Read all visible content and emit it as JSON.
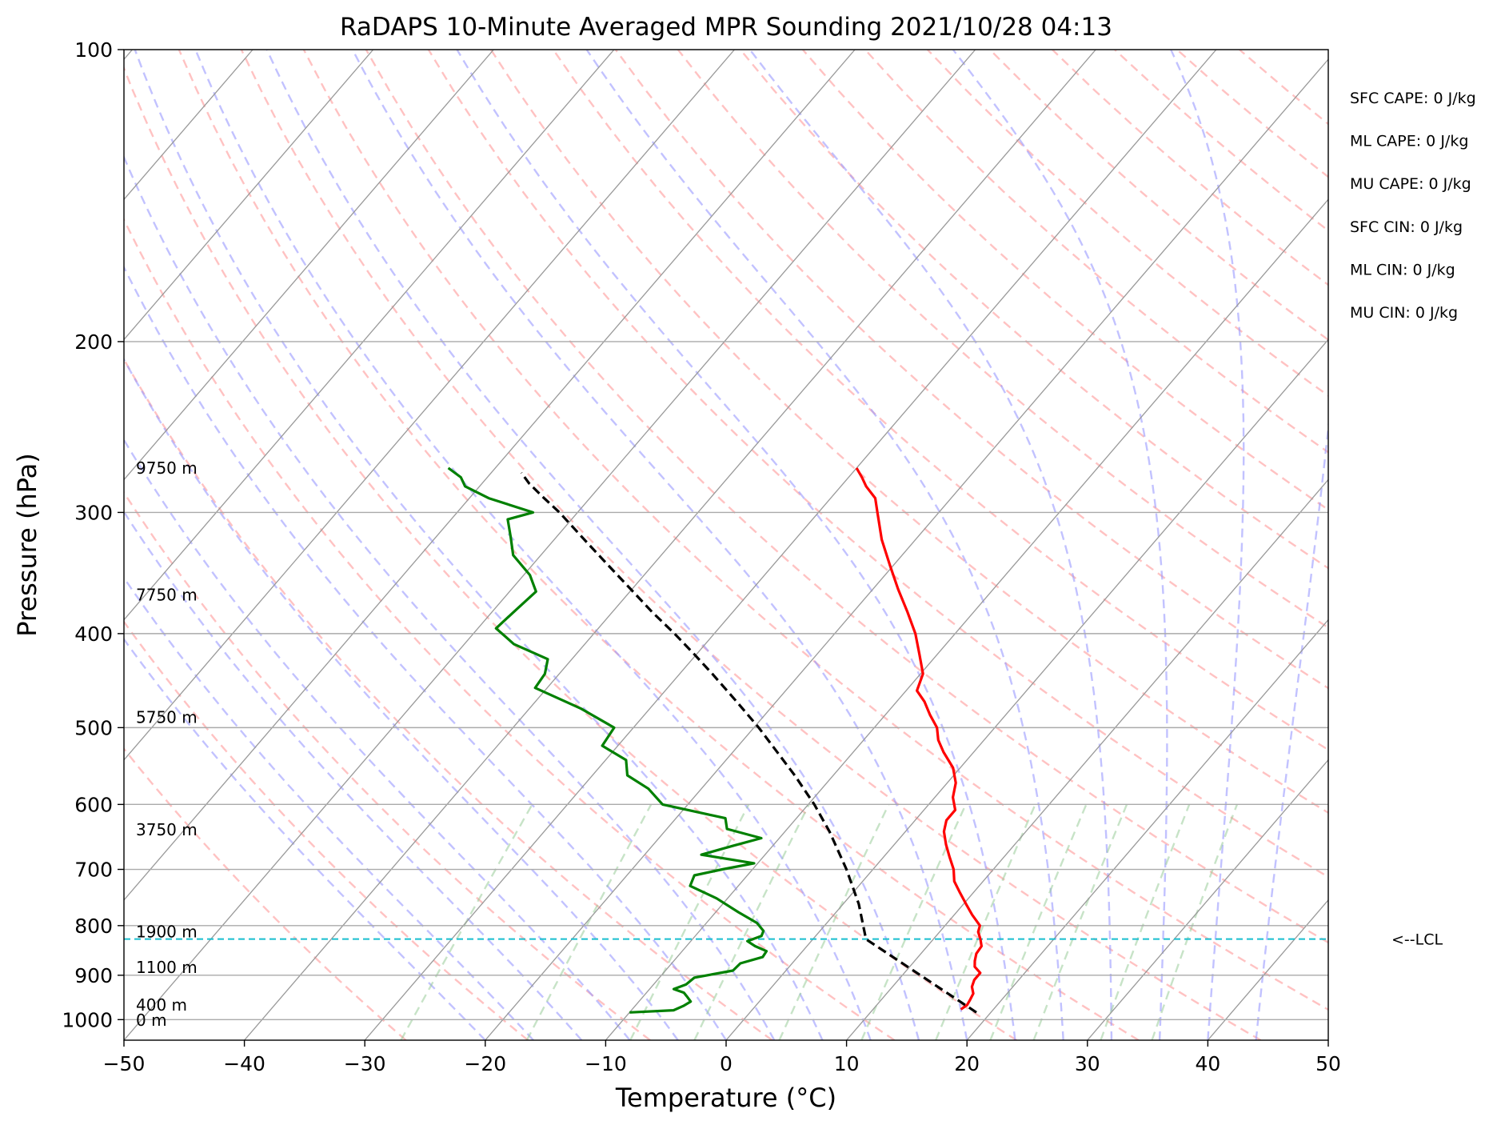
{
  "chart_data": {
    "type": "skew-t",
    "title": "RaDAPS 10-Minute Averaged MPR Sounding 2021/10/28 04:13",
    "xlabel": "Temperature (°C)",
    "ylabel": "Pressure (hPa)",
    "xlim": [
      -50,
      50
    ],
    "ylim": [
      1050,
      100
    ],
    "y_scale": "log",
    "grid": true,
    "x_ticks": [
      "−50",
      "−40",
      "−30",
      "−20",
      "−10",
      "0",
      "10",
      "20",
      "30",
      "40",
      "50"
    ],
    "y_ticks": [
      "100",
      "200",
      "300",
      "400",
      "500",
      "600",
      "700",
      "800",
      "900",
      "1000"
    ],
    "colors": {
      "temperature": "#ff0000",
      "dewpoint": "#008000",
      "parcel": "#000000",
      "lcl": "#17becf",
      "dry_adiabat": "#ff9999",
      "moist_adiabat": "#9999ff",
      "mixing_ratio": "#99cc99",
      "isotherm": "#999999"
    },
    "lcl_pressure": 826,
    "lcl_label": "<--LCL",
    "height_labels": [
      {
        "text": "9750 m",
        "p": 270
      },
      {
        "text": "7750 m",
        "p": 365
      },
      {
        "text": "5750 m",
        "p": 488
      },
      {
        "text": "3750 m",
        "p": 637
      },
      {
        "text": "1900 m",
        "p": 812
      },
      {
        "text": "1100 m",
        "p": 883
      },
      {
        "text": "400 m",
        "p": 966
      },
      {
        "text": "0 m",
        "p": 1001
      }
    ],
    "indices": [
      "SFC CAPE: 0 J/kg",
      "ML CAPE: 0 J/kg",
      "MU CAPE: 0 J/kg",
      "SFC CIN: 0 J/kg",
      "ML CIN: 0 J/kg",
      "MU CIN: 0 J/kg"
    ],
    "series": [
      {
        "name": "Temperature",
        "style": "solid",
        "p": [
          976,
          966,
          956,
          940,
          925,
          910,
          895,
          882,
          870,
          855,
          840,
          826,
          812,
          800,
          780,
          760,
          740,
          720,
          700,
          680,
          660,
          640,
          623,
          608,
          590,
          570,
          550,
          530,
          515,
          500,
          485,
          470,
          458,
          440,
          420,
          400,
          380,
          360,
          340,
          320,
          300,
          290,
          282,
          276,
          270
        ],
        "t": [
          17.3,
          17.5,
          17.4,
          17.2,
          16.6,
          16.3,
          16.3,
          15.4,
          15.0,
          14.6,
          14.5,
          13.9,
          13.2,
          12.9,
          11.5,
          10.2,
          8.9,
          7.6,
          6.7,
          5.5,
          4.3,
          3.2,
          2.6,
          2.6,
          1.5,
          0.7,
          -0.6,
          -2.5,
          -3.8,
          -4.8,
          -6.3,
          -7.7,
          -9.1,
          -9.8,
          -11.5,
          -13.3,
          -15.5,
          -17.9,
          -20.3,
          -22.8,
          -25.1,
          -26.3,
          -27.9,
          -28.9,
          -30.0
        ]
      },
      {
        "name": "Dewpoint",
        "style": "solid",
        "p": [
          983,
          978,
          968,
          958,
          946,
          938,
          930,
          920,
          905,
          890,
          875,
          862,
          850,
          840,
          830,
          820,
          810,
          795,
          775,
          750,
          728,
          710,
          700,
          690,
          676,
          662,
          650,
          636,
          620,
          600,
          578,
          560,
          540,
          522,
          500,
          478,
          455,
          440,
          425,
          410,
          395,
          380,
          362,
          348,
          332,
          318,
          305,
          300,
          290,
          282,
          276,
          270
        ],
        "t": [
          -10.0,
          -6.5,
          -6.0,
          -5.7,
          -6.4,
          -6.9,
          -8.0,
          -7.3,
          -7.1,
          -4.4,
          -4.3,
          -2.9,
          -3.0,
          -4.3,
          -5.3,
          -4.5,
          -4.7,
          -5.8,
          -8.1,
          -10.9,
          -14.0,
          -14.4,
          -12.5,
          -10.3,
          -15.3,
          -13.3,
          -11.5,
          -15.0,
          -15.9,
          -22.1,
          -24.4,
          -27.1,
          -28.3,
          -31.3,
          -31.6,
          -35.7,
          -41.0,
          -41.2,
          -42.0,
          -45.9,
          -48.5,
          -48.2,
          -47.8,
          -49.5,
          -52.3,
          -53.8,
          -55.3,
          -53.7,
          -58.4,
          -61.2,
          -62.2,
          -63.9
        ]
      },
      {
        "name": "Parcel",
        "style": "dashed",
        "p": [
          983,
          826,
          760,
          700,
          640,
          600,
          560,
          500,
          470,
          440,
          420,
          400,
          380,
          360,
          340,
          320,
          300,
          290,
          280,
          273
        ],
        "t": [
          18.8,
          4.4,
          1.3,
          -2.2,
          -6.3,
          -9.5,
          -13.2,
          -19.6,
          -23.3,
          -27.3,
          -30.2,
          -33.3,
          -36.7,
          -40.1,
          -43.7,
          -47.5,
          -51.5,
          -53.8,
          -56.1,
          -57.5
        ]
      }
    ]
  }
}
